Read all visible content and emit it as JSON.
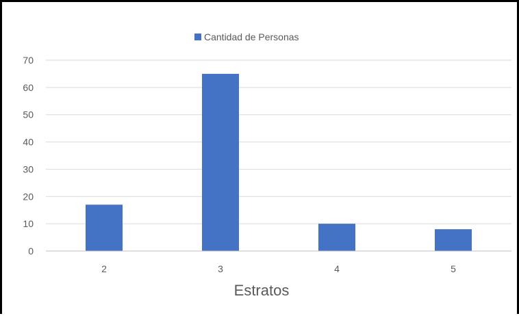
{
  "chart_data": {
    "type": "bar",
    "categories": [
      "2",
      "3",
      "4",
      "5"
    ],
    "series": [
      {
        "name": "Cantidad de Personas",
        "values": [
          17,
          65,
          10,
          8
        ],
        "color": "#4472C4"
      }
    ],
    "xlabel": "Estratos",
    "ylabel": "",
    "ylim": [
      0,
      70
    ],
    "yticks": [
      "0",
      "10",
      "20",
      "30",
      "40",
      "50",
      "60",
      "70"
    ],
    "grid": true,
    "legend_position": "top-center",
    "colors": {
      "gridline": "#D9D9D9",
      "axis": "#BFBFBF",
      "text": "#595959"
    }
  }
}
